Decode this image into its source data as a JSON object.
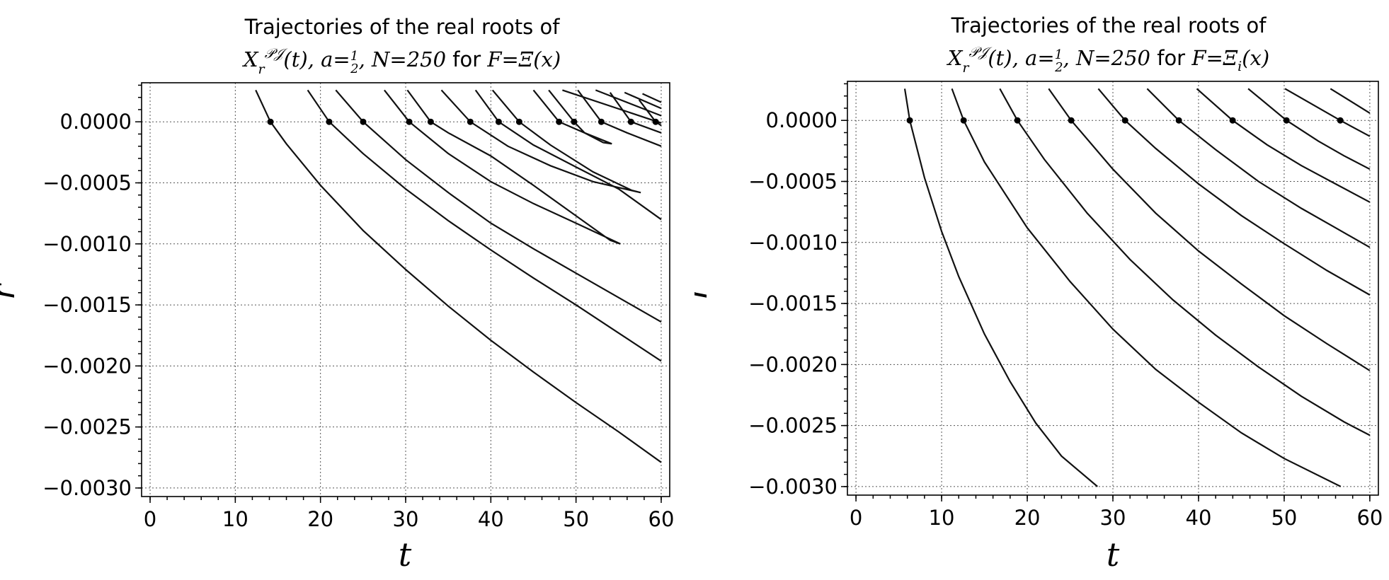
{
  "chart_data": [
    {
      "type": "line",
      "title_line1": "Trajectories of the real roots of",
      "title_line2_math_a": "X",
      "title_line2_math_b": "r",
      "title_line2_math_c": "𝒫𝒥",
      "title_line2_math_d": "(t), a=",
      "title_line2_frac_num": "1",
      "title_line2_frac_den": "2",
      "title_line2_math_e": ", N=250",
      "title_line2_for": " for ",
      "title_line2_math_f": "F=Ξ(x)",
      "xlabel": "t",
      "ylabel": "r",
      "xlim": [
        -1,
        61
      ],
      "ylim": [
        -0.00307,
        0.00032
      ],
      "xticks": [
        "0",
        "10",
        "20",
        "30",
        "40",
        "50",
        "60"
      ],
      "yticks": [
        "0.0000",
        "−0.0005",
        "−0.0010",
        "−0.0015",
        "−0.0020",
        "−0.0025",
        "−0.0030"
      ],
      "grid": true,
      "zero_crossings": [
        14.13,
        21.02,
        25.01,
        30.42,
        32.94,
        37.59,
        40.92,
        43.33,
        48.01,
        49.77,
        52.97,
        56.45,
        59.35
      ],
      "series": [
        {
          "x": [
            12.4,
            14.13,
            16,
            20,
            25,
            30,
            35,
            40,
            45,
            50,
            55,
            60
          ],
          "y": [
            0.00026,
            0.0,
            -0.00018,
            -0.00052,
            -0.00089,
            -0.00121,
            -0.00151,
            -0.00179,
            -0.00205,
            -0.0023,
            -0.00254,
            -0.00279
          ]
        },
        {
          "x": [
            18.5,
            21.02,
            25,
            30,
            35,
            40,
            45,
            50,
            55,
            60
          ],
          "y": [
            0.00026,
            0.0,
            -0.00026,
            -0.00055,
            -0.00081,
            -0.00105,
            -0.00128,
            -0.0015,
            -0.00173,
            -0.00196
          ]
        },
        {
          "x": [
            21.8,
            25.01,
            30,
            35,
            40,
            45,
            50,
            55,
            60
          ],
          "y": [
            0.00026,
            0.0,
            -0.00031,
            -0.00058,
            -0.00083,
            -0.00104,
            -0.00124,
            -0.00144,
            -0.00164
          ]
        },
        {
          "x": [
            27.5,
            30.42,
            35,
            40,
            45,
            50,
            55.2,
            54.0,
            50,
            45,
            40,
            35,
            32.94,
            30.2
          ],
          "y": [
            0.00026,
            0.0,
            -0.00026,
            -0.00049,
            -0.00067,
            -0.00083,
            -0.001,
            -0.00097,
            -0.00077,
            -0.00052,
            -0.00028,
            -9e-05,
            0.0,
            0.00026
          ]
        },
        {
          "x": [
            34.2,
            37.59,
            42,
            47,
            52,
            57.6,
            56.5,
            52,
            47,
            43.33,
            40.2
          ],
          "y": [
            0.00026,
            0.0,
            -0.0002,
            -0.00036,
            -0.00049,
            -0.00058,
            -0.00056,
            -0.00041,
            -0.00019,
            0.0,
            0.00026
          ]
        },
        {
          "x": [
            38.2,
            40.92,
            45,
            50,
            55,
            60
          ],
          "y": [
            0.00026,
            0.0,
            -0.00019,
            -0.00037,
            -0.00055,
            -0.0008
          ]
        },
        {
          "x": [
            45.0,
            48.01,
            51,
            54.2,
            53.2,
            51,
            49.77,
            46.8
          ],
          "y": [
            0.00026,
            0.0,
            -9e-05,
            -0.00018,
            -0.00017,
            -9e-05,
            0.0,
            0.00026
          ]
        },
        {
          "x": [
            50.2,
            52.97,
            56,
            60
          ],
          "y": [
            0.00026,
            0.0,
            -9e-05,
            -0.0002
          ]
        },
        {
          "x": [
            54.0,
            56.45,
            60
          ],
          "y": [
            0.00024,
            0.0,
            -9e-05
          ]
        },
        {
          "x": [
            57.4,
            59.35,
            60
          ],
          "y": [
            0.00018,
            0.0,
            -3e-05
          ]
        },
        {
          "x": [
            48.4,
            60
          ],
          "y": [
            0.00026,
            -1e-05
          ]
        },
        {
          "x": [
            52.3,
            60
          ],
          "y": [
            0.00026,
            5e-05
          ]
        },
        {
          "x": [
            55.7,
            60
          ],
          "y": [
            0.00024,
            0.00011
          ]
        },
        {
          "x": [
            57.8,
            60
          ],
          "y": [
            0.00023,
            0.00016
          ]
        }
      ]
    },
    {
      "type": "line",
      "title_line1": "Trajectories of the real roots of",
      "title_line2_math_a": "X",
      "title_line2_math_b": "r",
      "title_line2_math_c": "𝒫𝒥",
      "title_line2_math_d": "(t), a=",
      "title_line2_frac_num": "1",
      "title_line2_frac_den": "2",
      "title_line2_math_e": ", N=250",
      "title_line2_for": " for ",
      "title_line2_math_f": "F=Ξ",
      "title_line2_math_g": "i",
      "title_line2_math_h": "(x)",
      "xlabel": "t",
      "ylabel": "r",
      "xlim": [
        -1,
        61
      ],
      "ylim": [
        -0.00307,
        0.00032
      ],
      "xticks": [
        "0",
        "10",
        "20",
        "30",
        "40",
        "50",
        "60"
      ],
      "yticks": [
        "0.0000",
        "−0.0005",
        "−0.0010",
        "−0.0015",
        "−0.0020",
        "−0.0025",
        "−0.0030"
      ],
      "grid": true,
      "zero_crossings": [
        6.28,
        12.57,
        18.85,
        25.13,
        31.42,
        37.7,
        43.98,
        50.27,
        56.55
      ],
      "series": [
        {
          "x": [
            5.7,
            6.28,
            8,
            10,
            12,
            15,
            18,
            21,
            24,
            28.2
          ],
          "y": [
            0.00026,
            0.0,
            -0.00047,
            -0.00091,
            -0.00128,
            -0.00175,
            -0.00214,
            -0.00248,
            -0.00275,
            -0.003
          ]
        },
        {
          "x": [
            11.2,
            12.57,
            15,
            20,
            25,
            30,
            35,
            40,
            45,
            50,
            56.6
          ],
          "y": [
            0.00026,
            0.0,
            -0.00034,
            -0.00088,
            -0.00132,
            -0.00171,
            -0.00204,
            -0.00231,
            -0.00256,
            -0.00277,
            -0.003
          ]
        },
        {
          "x": [
            16.8,
            18.85,
            22,
            27,
            32,
            37,
            42,
            47,
            52,
            57,
            60
          ],
          "y": [
            0.00026,
            0.0,
            -0.00032,
            -0.00076,
            -0.00114,
            -0.00147,
            -0.00176,
            -0.00202,
            -0.00226,
            -0.00247,
            -0.00258
          ]
        },
        {
          "x": [
            22.5,
            25.13,
            30,
            35,
            40,
            45,
            50,
            55,
            60
          ],
          "y": [
            0.00026,
            0.0,
            -0.0004,
            -0.00076,
            -0.00107,
            -0.00134,
            -0.0016,
            -0.00183,
            -0.00205
          ]
        },
        {
          "x": [
            28.3,
            31.42,
            35,
            40,
            45,
            50,
            55,
            60
          ],
          "y": [
            0.00026,
            0.0,
            -0.00023,
            -0.00052,
            -0.00078,
            -0.00101,
            -0.00123,
            -0.00143
          ]
        },
        {
          "x": [
            34.0,
            37.7,
            42,
            47,
            52,
            56,
            60
          ],
          "y": [
            0.00026,
            0.0,
            -0.00024,
            -0.0005,
            -0.00072,
            -0.00088,
            -0.00104
          ]
        },
        {
          "x": [
            39.8,
            43.98,
            48,
            52,
            56,
            60
          ],
          "y": [
            0.00026,
            0.0,
            -0.0002,
            -0.00037,
            -0.00052,
            -0.00067
          ]
        },
        {
          "x": [
            45.8,
            50.27,
            54,
            57,
            60
          ],
          "y": [
            0.00026,
            0.0,
            -0.00017,
            -0.00029,
            -0.0004
          ]
        },
        {
          "x": [
            50.1,
            56.55,
            60
          ],
          "y": [
            0.00026,
            0.0,
            -0.00013
          ]
        },
        {
          "x": [
            55.4,
            60
          ],
          "y": [
            0.00026,
            6e-05
          ]
        }
      ]
    }
  ]
}
